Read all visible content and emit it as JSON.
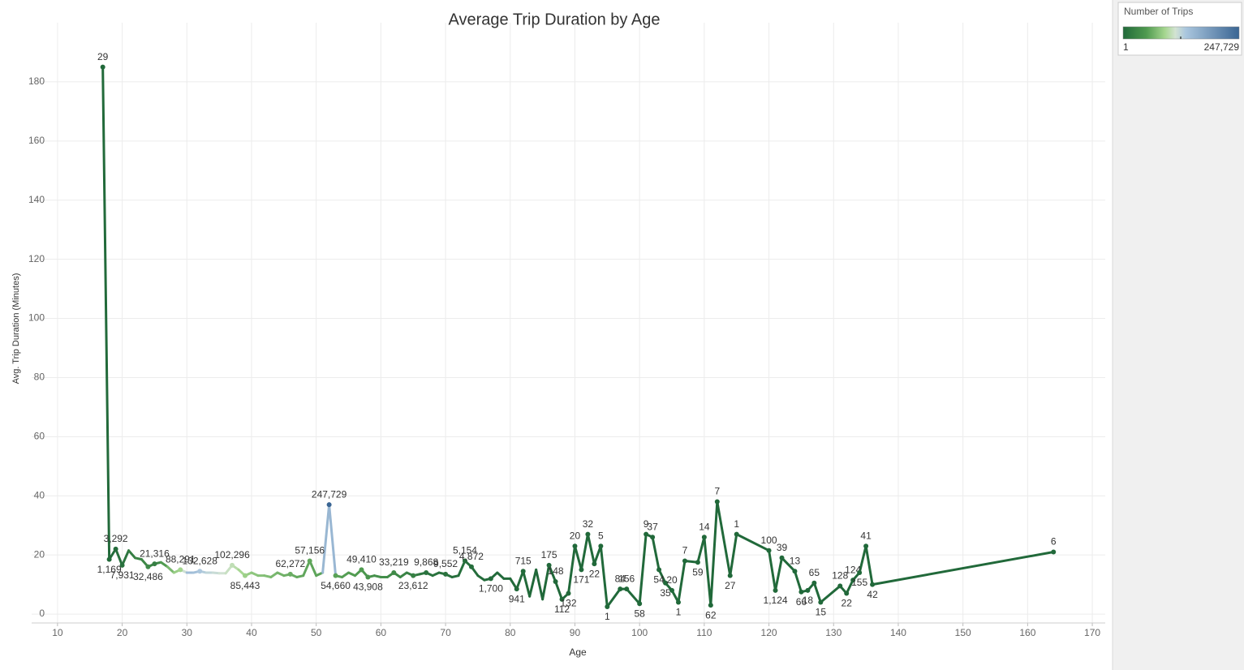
{
  "chart_data": {
    "type": "line",
    "title": "Average Trip Duration by Age",
    "x_label": "Age",
    "y_label": "Avg. Trip Duration (Minutes)",
    "xlim": [
      6,
      172
    ],
    "ylim": [
      -3,
      200
    ],
    "xticks": [
      10,
      20,
      30,
      40,
      50,
      60,
      70,
      80,
      90,
      100,
      110,
      120,
      130,
      140,
      150,
      160,
      170
    ],
    "yticks": [
      0,
      20,
      40,
      60,
      80,
      100,
      120,
      140,
      160,
      180
    ],
    "grid": true,
    "x": [
      17,
      18,
      19,
      20,
      21,
      22,
      23,
      24,
      25,
      26,
      27,
      28,
      29,
      30,
      31,
      32,
      33,
      34,
      35,
      36,
      37,
      38,
      39,
      40,
      41,
      42,
      43,
      44,
      45,
      46,
      47,
      48,
      49,
      50,
      51,
      52,
      53,
      54,
      55,
      56,
      57,
      58,
      59,
      60,
      61,
      62,
      63,
      64,
      65,
      66,
      67,
      68,
      69,
      70,
      71,
      72,
      73,
      74,
      75,
      76,
      77,
      78,
      79,
      80,
      81,
      82,
      83,
      84,
      85,
      86,
      87,
      88,
      89,
      90,
      91,
      92,
      93,
      94,
      95,
      97,
      98,
      100,
      101,
      102,
      103,
      104,
      105,
      106,
      107,
      109,
      110,
      111,
      112,
      114,
      115,
      120,
      121,
      122,
      124,
      125,
      126,
      127,
      128,
      131,
      132,
      133,
      134,
      135,
      136,
      164
    ],
    "values": [
      185,
      18.5,
      22,
      16.5,
      21.5,
      19,
      18.5,
      16,
      17,
      17.5,
      16,
      14,
      15,
      14,
      14,
      14.5,
      14,
      14,
      13.8,
      13.8,
      16.5,
      15,
      13,
      14,
      13,
      13,
      12.5,
      14,
      13,
      13.5,
      12.5,
      13,
      18,
      13,
      14,
      37,
      13,
      12.5,
      14,
      13,
      15,
      12.5,
      13,
      12.5,
      12.5,
      14,
      12.5,
      14,
      13,
      13.5,
      14,
      13,
      14,
      13.5,
      12.5,
      13,
      18,
      16,
      13,
      11.5,
      12,
      14,
      12,
      12,
      8.5,
      14.5,
      6,
      15,
      5,
      16.5,
      11,
      5,
      7,
      23,
      15,
      27,
      17,
      23,
      2.5,
      8.5,
      8.5,
      3.5,
      27,
      26,
      15,
      10.5,
      8,
      4,
      18,
      17.5,
      26,
      3,
      38,
      13,
      27,
      21.5,
      8,
      19,
      14.5,
      7.5,
      8,
      10.5,
      4,
      9.5,
      7,
      11.5,
      14,
      23,
      10,
      21
    ],
    "trips": [
      29,
      1169,
      3292,
      7931,
      15000,
      25000,
      30000,
      32486,
      21316,
      40000,
      60000,
      80000,
      88291,
      140000,
      150000,
      132628,
      125000,
      120000,
      115000,
      110000,
      102296,
      95000,
      85443,
      80000,
      77000,
      74000,
      71000,
      68000,
      65000,
      62272,
      60000,
      58000,
      57156,
      56000,
      55000,
      247729,
      54660,
      53000,
      52000,
      50500,
      49410,
      43908,
      40000,
      38000,
      36000,
      33219,
      30000,
      27000,
      23612,
      15000,
      9868,
      9700,
      9600,
      9552,
      7000,
      6000,
      5154,
      4872,
      3500,
      2500,
      1700,
      1500,
      1200,
      1000,
      941,
      715,
      500,
      300,
      250,
      175,
      148,
      112,
      132,
      20,
      171,
      32,
      22,
      5,
      1,
      84,
      156,
      58,
      9,
      37,
      54,
      35,
      20,
      1,
      7,
      59,
      14,
      62,
      7,
      27,
      1,
      100,
      1124,
      39,
      13,
      66,
      18,
      65,
      15,
      128,
      22,
      124,
      155,
      41,
      42,
      6
    ],
    "trip_labels": [
      "29",
      "1,169",
      "3,292",
      "7,931",
      null,
      null,
      null,
      "32,486",
      "21,316",
      null,
      null,
      null,
      "88,291",
      null,
      null,
      "132,628",
      null,
      null,
      null,
      null,
      "102,296",
      null,
      "85,443",
      null,
      null,
      null,
      null,
      null,
      null,
      "62,272",
      null,
      null,
      "57,156",
      null,
      null,
      "247,729",
      "54,660",
      null,
      null,
      null,
      "49,410",
      "43,908",
      null,
      null,
      null,
      "33,219",
      null,
      null,
      "23,612",
      null,
      "9,868",
      null,
      null,
      "9,552",
      null,
      null,
      "5,154",
      "4,872",
      null,
      null,
      "1,700",
      null,
      null,
      null,
      "941",
      "715",
      null,
      null,
      null,
      "175",
      "148",
      "112",
      "132",
      "20",
      "171",
      "32",
      "22",
      "5",
      "1",
      "84",
      "156",
      "58",
      "9",
      "37",
      "54",
      "35",
      "20",
      "1",
      "7",
      "59",
      "14",
      "62",
      "7",
      "27",
      "1",
      "100",
      "1,124",
      "39",
      "13",
      "66",
      "18",
      "65",
      "15",
      "128",
      "22",
      "124",
      "155",
      "41",
      "42",
      "6"
    ],
    "legend": {
      "title": "Number of Trips",
      "min": 1,
      "max": {
        "value": 247729,
        "label": "247,729"
      },
      "stops": [
        {
          "offset": 0,
          "color": "#21693a"
        },
        {
          "offset": 0.2,
          "color": "#4f9a4f"
        },
        {
          "offset": 0.36,
          "color": "#a5d68f"
        },
        {
          "offset": 0.45,
          "color": "#d3e3d2"
        },
        {
          "offset": 0.54,
          "color": "#aac6de"
        },
        {
          "offset": 1,
          "color": "#3a6593"
        }
      ]
    }
  }
}
